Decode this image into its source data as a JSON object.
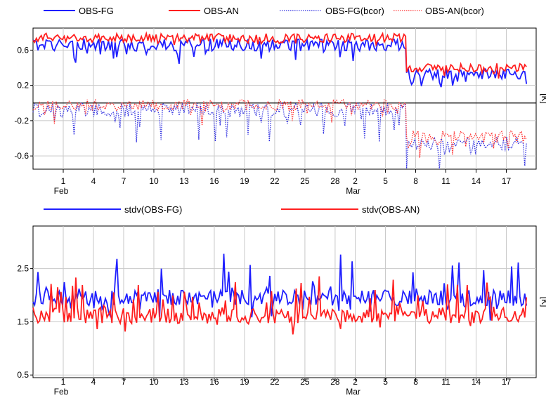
{
  "chart_data": [
    {
      "type": "line",
      "unit_label": "[K]",
      "ylim": [
        -0.75,
        0.85
      ],
      "y_ticks": [
        0.6,
        0.2,
        -0.2,
        -0.6
      ],
      "y_tick_labels": [
        "0.6",
        "0.2",
        "-0.2",
        "-0.6"
      ],
      "x_ticks": [
        "1",
        "4",
        "7",
        "10",
        "13",
        "16",
        "19",
        "22",
        "25",
        "28",
        "2",
        "5",
        "8",
        "11",
        "14",
        "17"
      ],
      "x_tick_highlight": [
        "7",
        "28"
      ],
      "month_labels": [
        {
          "label": "Feb",
          "at": "1"
        },
        {
          "label": "Mar",
          "at": "2"
        }
      ],
      "grid": true,
      "legend_position": "top",
      "series": [
        {
          "name": "OBS-FG",
          "color": "#1f1fff",
          "style": "solid",
          "segments": [
            {
              "from_day": 0,
              "to_day": 37,
              "level": 0.66,
              "noise": 0.07,
              "dips": 0.18
            },
            {
              "from_day": 37.1,
              "to_day": 49,
              "level": 0.33,
              "noise": 0.06,
              "dips": 0.15
            }
          ]
        },
        {
          "name": "OBS-AN",
          "color": "#ff1f1f",
          "style": "solid",
          "segments": [
            {
              "from_day": 0,
              "to_day": 37,
              "level": 0.74,
              "noise": 0.05,
              "dips": 0.08
            },
            {
              "from_day": 37.1,
              "to_day": 49,
              "level": 0.4,
              "noise": 0.05,
              "dips": 0.1
            }
          ]
        },
        {
          "name": "OBS-FG(bcor)",
          "color": "#3030e0",
          "style": "dotted",
          "segments": [
            {
              "from_day": 0,
              "to_day": 37,
              "level": -0.08,
              "noise": 0.08,
              "dips": 0.35
            },
            {
              "from_day": 37.1,
              "to_day": 49,
              "level": -0.45,
              "noise": 0.08,
              "dips": 0.3
            }
          ]
        },
        {
          "name": "OBS-AN(bcor)",
          "color": "#ff3030",
          "style": "dotted",
          "segments": [
            {
              "from_day": 0,
              "to_day": 37,
              "level": -0.02,
              "noise": 0.06,
              "dips": 0.2
            },
            {
              "from_day": 37.1,
              "to_day": 49,
              "level": -0.38,
              "noise": 0.07,
              "dips": 0.22
            }
          ]
        }
      ],
      "zero_line": 0.0
    },
    {
      "type": "line",
      "unit_label": "[K]",
      "ylim": [
        0.45,
        3.3
      ],
      "y_ticks": [
        2.5,
        1.5,
        0.5
      ],
      "y_tick_labels": [
        "2.5",
        "1.5",
        "0.5"
      ],
      "x_ticks": [
        "1",
        "4",
        "7",
        "10",
        "13",
        "16",
        "19",
        "22",
        "25",
        "28",
        "2",
        "5",
        "8",
        "11",
        "14",
        "17"
      ],
      "x_tick_highlight": [
        "7",
        "28"
      ],
      "month_labels": [
        {
          "label": "Feb",
          "at": "1"
        },
        {
          "label": "Mar",
          "at": "2"
        }
      ],
      "grid": true,
      "legend_position": "top",
      "series": [
        {
          "name": "stdv(OBS-FG)",
          "color": "#1f1fff",
          "style": "solid",
          "level": 1.95,
          "noise": 0.15,
          "peaks": 0.7
        },
        {
          "name": "stdv(OBS-AN)",
          "color": "#ff1f1f",
          "style": "solid",
          "level": 1.62,
          "noise": 0.15,
          "peaks": 0.7
        }
      ]
    }
  ],
  "colors": {
    "tick_highlight": "#ff0000",
    "grid": "#c8c8c8",
    "axis": "#000000"
  }
}
